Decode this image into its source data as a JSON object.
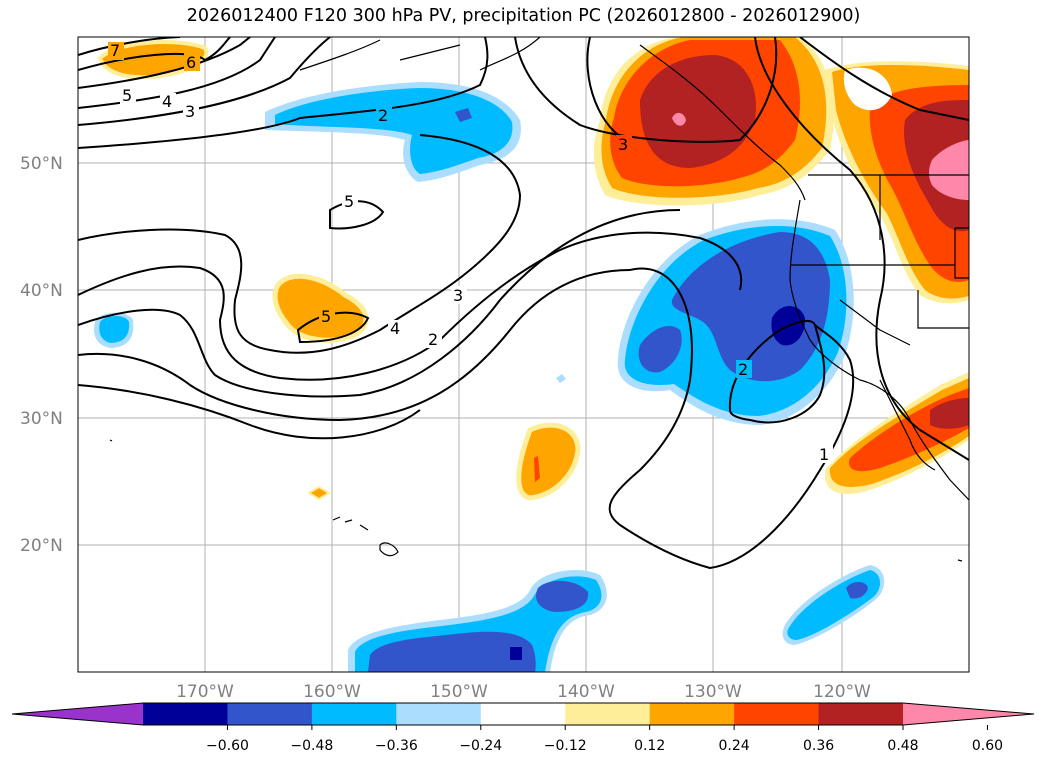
{
  "title": "2026012400 F120 300 hPa PV, precipitation PC (2026012800 - 2026012900)",
  "latitude_labels": [
    "50°N",
    "40°N",
    "30°N",
    "20°N"
  ],
  "longitude_labels": [
    "170°W",
    "160°W",
    "150°W",
    "140°W",
    "130°W",
    "120°W"
  ],
  "colorbar": {
    "ticks": [
      "−0.60",
      "−0.48",
      "−0.36",
      "−0.24",
      "−0.12",
      "0.12",
      "0.24",
      "0.36",
      "0.48",
      "0.60"
    ],
    "colors": [
      "#9933cc",
      "#000099",
      "#3355cc",
      "#00bbff",
      "#aaddff",
      "#ffffff",
      "#ffee99",
      "#ffa500",
      "#ff4400",
      "#b22222",
      "#ff88aa"
    ]
  },
  "contour_labels": [
    "7",
    "6",
    "5",
    "4",
    "3",
    "2",
    "5",
    "5",
    "4",
    "3",
    "2",
    "3",
    "2",
    "1"
  ],
  "colors": {
    "neg_strong": "#000099",
    "neg_med": "#3355cc",
    "neg_weak": "#00bbff",
    "neg_faint": "#aaddff",
    "pos_faint": "#ffee99",
    "pos_weak": "#ffa500",
    "pos_med": "#ff4400",
    "pos_strong": "#b22222",
    "pos_max": "#ff88aa",
    "grid": "#b0b0b0"
  }
}
